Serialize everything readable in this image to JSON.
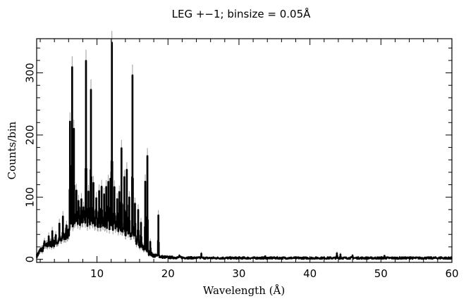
{
  "chart_data": {
    "type": "line",
    "title": "LEG +−1; binsize = 0.05Å",
    "xlabel": "Wavelength (Å)",
    "ylabel": "Counts/bin",
    "xlim": [
      1.5,
      60
    ],
    "ylim": [
      -5,
      355
    ],
    "x_ticks": [
      10,
      20,
      30,
      40,
      50,
      60
    ],
    "y_ticks": [
      0,
      100,
      200,
      300
    ],
    "grid": false,
    "legend": "none",
    "series": [
      {
        "continuum": [
          [
            1.5,
            5
          ],
          [
            2,
            14
          ],
          [
            3,
            22
          ],
          [
            4,
            26
          ],
          [
            5,
            30
          ],
          [
            6,
            42
          ],
          [
            6.5,
            55
          ],
          [
            7,
            62
          ],
          [
            8,
            64
          ],
          [
            9,
            60
          ],
          [
            10,
            58
          ],
          [
            11,
            56
          ],
          [
            12,
            56
          ],
          [
            13,
            52
          ],
          [
            14,
            46
          ],
          [
            15,
            36
          ],
          [
            16,
            24
          ],
          [
            17,
            12
          ],
          [
            18,
            6
          ],
          [
            19,
            4
          ],
          [
            20,
            3
          ],
          [
            25,
            2
          ],
          [
            30,
            2
          ],
          [
            40,
            2
          ],
          [
            50,
            2
          ],
          [
            60,
            2
          ]
        ],
        "lines": [
          [
            2.6,
            14
          ],
          [
            3.2,
            18
          ],
          [
            3.7,
            20
          ],
          [
            4.2,
            12
          ],
          [
            4.7,
            24
          ],
          [
            5.2,
            34
          ],
          [
            5.7,
            22
          ],
          [
            6.2,
            180
          ],
          [
            6.5,
            250
          ],
          [
            6.75,
            160
          ],
          [
            7.1,
            42
          ],
          [
            7.4,
            40
          ],
          [
            7.8,
            32
          ],
          [
            8.1,
            28
          ],
          [
            8.45,
            250
          ],
          [
            8.8,
            40
          ],
          [
            9.15,
            215
          ],
          [
            9.5,
            60
          ],
          [
            9.9,
            38
          ],
          [
            10.3,
            48
          ],
          [
            10.65,
            60
          ],
          [
            11.0,
            52
          ],
          [
            11.3,
            58
          ],
          [
            11.6,
            62
          ],
          [
            11.9,
            70
          ],
          [
            12.1,
            300
          ],
          [
            12.45,
            68
          ],
          [
            12.85,
            40
          ],
          [
            13.15,
            50
          ],
          [
            13.45,
            128
          ],
          [
            13.85,
            92
          ],
          [
            14.2,
            104
          ],
          [
            14.55,
            55
          ],
          [
            15.0,
            258
          ],
          [
            15.35,
            58
          ],
          [
            15.8,
            48
          ],
          [
            16.2,
            36
          ],
          [
            16.8,
            110
          ],
          [
            17.1,
            152
          ],
          [
            17.5,
            18
          ],
          [
            18.65,
            68
          ],
          [
            21.6,
            3
          ],
          [
            24.7,
            6
          ],
          [
            33.7,
            2
          ],
          [
            43.8,
            7
          ],
          [
            44.3,
            6
          ],
          [
            46.0,
            4
          ],
          [
            50.5,
            4
          ],
          [
            54.2,
            3
          ],
          [
            58.5,
            2
          ]
        ]
      }
    ]
  }
}
